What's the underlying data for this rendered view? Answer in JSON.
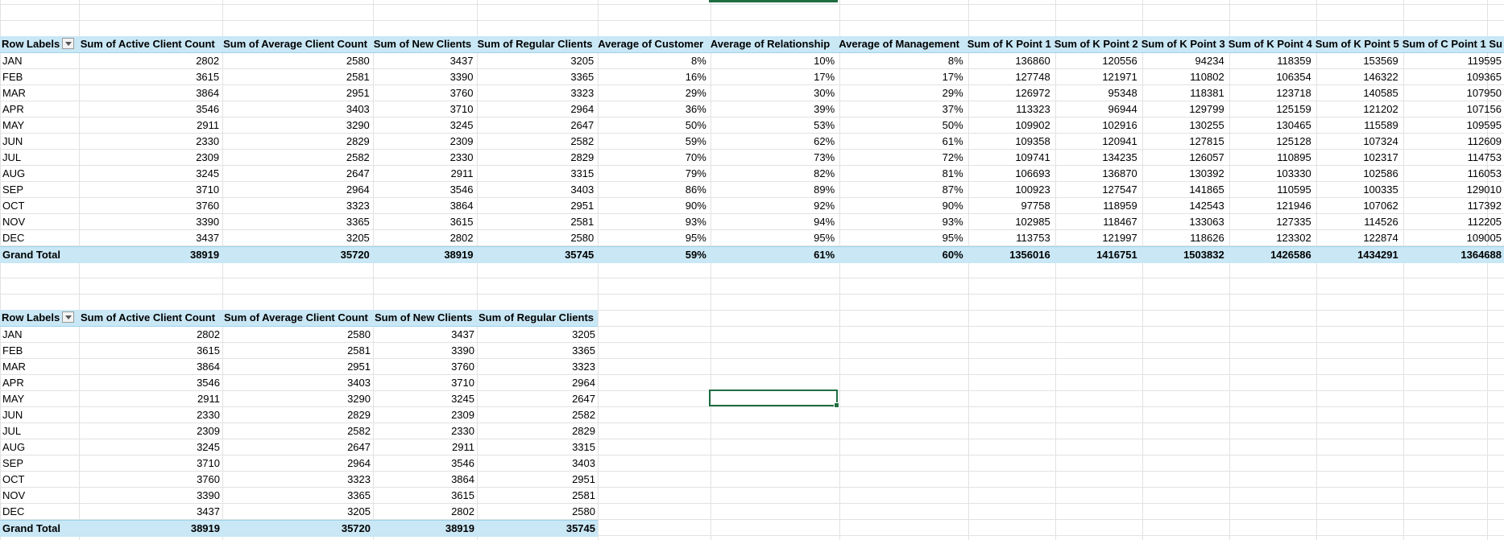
{
  "pivot_top": {
    "headers": [
      "Row Labels",
      "Sum of Active Client Count",
      "Sum of Average Client Count",
      "Sum of New Clients",
      "Sum of Regular Clients",
      "Average of Customer",
      "Average of Relationship",
      "Average of Management",
      "Sum of K Point 1",
      "Sum of K Point 2",
      "Sum of K Point 3",
      "Sum of K Point 4",
      "Sum of K Point 5",
      "Sum of C Point 1 Su"
    ],
    "rows": [
      [
        "JAN",
        "2802",
        "2580",
        "3437",
        "3205",
        "8%",
        "10%",
        "8%",
        "136860",
        "120556",
        "94234",
        "118359",
        "153569",
        "119595"
      ],
      [
        "FEB",
        "3615",
        "2581",
        "3390",
        "3365",
        "16%",
        "17%",
        "17%",
        "127748",
        "121971",
        "110802",
        "106354",
        "146322",
        "109365"
      ],
      [
        "MAR",
        "3864",
        "2951",
        "3760",
        "3323",
        "29%",
        "30%",
        "29%",
        "126972",
        "95348",
        "118381",
        "123718",
        "140585",
        "107950"
      ],
      [
        "APR",
        "3546",
        "3403",
        "3710",
        "2964",
        "36%",
        "39%",
        "37%",
        "113323",
        "96944",
        "129799",
        "125159",
        "121202",
        "107156"
      ],
      [
        "MAY",
        "2911",
        "3290",
        "3245",
        "2647",
        "50%",
        "53%",
        "50%",
        "109902",
        "102916",
        "130255",
        "130465",
        "115589",
        "109595"
      ],
      [
        "JUN",
        "2330",
        "2829",
        "2309",
        "2582",
        "59%",
        "62%",
        "61%",
        "109358",
        "120941",
        "127815",
        "125128",
        "107324",
        "112609"
      ],
      [
        "JUL",
        "2309",
        "2582",
        "2330",
        "2829",
        "70%",
        "73%",
        "72%",
        "109741",
        "134235",
        "126057",
        "110895",
        "102317",
        "114753"
      ],
      [
        "AUG",
        "3245",
        "2647",
        "2911",
        "3315",
        "79%",
        "82%",
        "81%",
        "106693",
        "136870",
        "130392",
        "103330",
        "102586",
        "116053"
      ],
      [
        "SEP",
        "3710",
        "2964",
        "3546",
        "3403",
        "86%",
        "89%",
        "87%",
        "100923",
        "127547",
        "141865",
        "110595",
        "100335",
        "129010"
      ],
      [
        "OCT",
        "3760",
        "3323",
        "3864",
        "2951",
        "90%",
        "92%",
        "90%",
        "97758",
        "118959",
        "142543",
        "121946",
        "107062",
        "117392"
      ],
      [
        "NOV",
        "3390",
        "3365",
        "3615",
        "2581",
        "93%",
        "94%",
        "93%",
        "102985",
        "118467",
        "133063",
        "127335",
        "114526",
        "112205"
      ],
      [
        "DEC",
        "3437",
        "3205",
        "2802",
        "2580",
        "95%",
        "95%",
        "95%",
        "113753",
        "121997",
        "118626",
        "123302",
        "122874",
        "109005"
      ]
    ],
    "total": [
      "Grand Total",
      "38919",
      "35720",
      "38919",
      "35745",
      "59%",
      "61%",
      "60%",
      "1356016",
      "1416751",
      "1503832",
      "1426586",
      "1434291",
      "1364688"
    ]
  },
  "pivot_bottom": {
    "headers": [
      "Row Labels",
      "Sum of Active Client Count",
      "Sum of Average Client Count",
      "Sum of New Clients",
      "Sum of Regular Clients"
    ],
    "rows": [
      [
        "JAN",
        "2802",
        "2580",
        "3437",
        "3205"
      ],
      [
        "FEB",
        "3615",
        "2581",
        "3390",
        "3365"
      ],
      [
        "MAR",
        "3864",
        "2951",
        "3760",
        "3323"
      ],
      [
        "APR",
        "3546",
        "3403",
        "3710",
        "2964"
      ],
      [
        "MAY",
        "2911",
        "3290",
        "3245",
        "2647"
      ],
      [
        "JUN",
        "2330",
        "2829",
        "2309",
        "2582"
      ],
      [
        "JUL",
        "2309",
        "2582",
        "2330",
        "2829"
      ],
      [
        "AUG",
        "3245",
        "2647",
        "2911",
        "3315"
      ],
      [
        "SEP",
        "3710",
        "2964",
        "3546",
        "3403"
      ],
      [
        "OCT",
        "3760",
        "3323",
        "3864",
        "2951"
      ],
      [
        "NOV",
        "3390",
        "3365",
        "3615",
        "2581"
      ],
      [
        "DEC",
        "3437",
        "3205",
        "2802",
        "2580"
      ]
    ],
    "total": [
      "Grand Total",
      "38919",
      "35720",
      "38919",
      "35745"
    ]
  }
}
